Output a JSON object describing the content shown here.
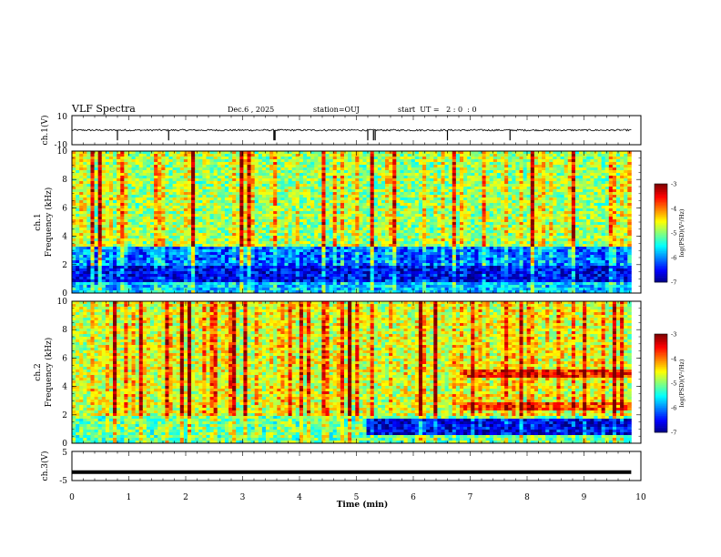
{
  "header": {
    "title": "VLF Spectra",
    "date": "Dec.6 , 2025",
    "station": "station=OUJ",
    "start_ut": "start  UT =   2 : 0  : 0"
  },
  "chart_data": [
    {
      "type": "line",
      "panel": "ch1-waveform",
      "ylabel": "ch.1(V)",
      "ylim": [
        -10,
        10
      ],
      "yticks": [
        "10",
        "-10"
      ],
      "x_range_min": [
        0,
        9.83
      ],
      "baseline_value": 0,
      "noise_amplitude": 0.6,
      "spikes_min": [
        0.8,
        1.7,
        3.55,
        3.57,
        5.2,
        5.3,
        5.33,
        6.6,
        7.7
      ]
    },
    {
      "type": "heatmap",
      "panel": "ch1-spectrogram",
      "ylabel": "ch.1\nFrequency (kHz)",
      "ylabel_line1": "ch.1",
      "ylabel_line2": "Frequency (kHz)",
      "ylim": [
        0,
        10
      ],
      "yticks": [
        "0",
        "2",
        "4",
        "6",
        "8",
        "10"
      ],
      "x_range_min": [
        0,
        9.83
      ],
      "colorbar": {
        "range": [
          -7,
          -3
        ],
        "ticks": [
          "-3",
          "-4",
          "-5",
          "-6",
          "-7"
        ],
        "label": "log(PSD)(V²/Hz)"
      },
      "bands_khz": [
        {
          "from": 0,
          "to": 0.8,
          "level": -5.8
        },
        {
          "from": 0.8,
          "to": 2.0,
          "level": -6.6
        },
        {
          "from": 2.0,
          "to": 3.2,
          "level": -6.2
        },
        {
          "from": 3.2,
          "to": 10,
          "level": -5.0
        }
      ]
    },
    {
      "type": "heatmap",
      "panel": "ch2-spectrogram",
      "ylabel": "ch.2\nFrequency (kHz)",
      "ylabel_line1": "ch.2",
      "ylabel_line2": "Frequency (kHz)",
      "ylim": [
        0,
        10
      ],
      "yticks": [
        "0",
        "2",
        "4",
        "6",
        "8",
        "10"
      ],
      "x_range_min": [
        0,
        9.83
      ],
      "colorbar": {
        "range": [
          -7,
          -3
        ],
        "ticks": [
          "-3",
          "-4",
          "-5",
          "-6",
          "-7"
        ],
        "label": "log(PSD)(V²/Hz)"
      },
      "bands_khz": [
        {
          "from": 0,
          "to": 2,
          "level": -5.2
        },
        {
          "from": 2,
          "to": 10,
          "level": -4.8
        }
      ],
      "events": [
        {
          "t_from_min": 5.2,
          "t_to_min": 9.83,
          "f_from_khz": 0.5,
          "f_to_khz": 1.8,
          "level": -6.7
        },
        {
          "t_from_min": 6.9,
          "t_to_min": 9.83,
          "f_from_khz": 4.7,
          "f_to_khz": 5.2,
          "level": -3.8
        },
        {
          "t_from_min": 6.9,
          "t_to_min": 9.83,
          "f_from_khz": 2.4,
          "f_to_khz": 2.8,
          "level": -4.0
        }
      ]
    },
    {
      "type": "line",
      "panel": "ch3-waveform",
      "ylabel": "ch.3(V)",
      "ylim": [
        -5,
        5
      ],
      "yticks": [
        "5",
        "-5"
      ],
      "x_range_min": [
        0,
        9.83
      ],
      "value": -2.1
    }
  ],
  "xaxis": {
    "xlabel": "Time (min)",
    "xlim": [
      0,
      10
    ],
    "ticks": [
      "0",
      "1",
      "2",
      "3",
      "4",
      "5",
      "6",
      "7",
      "8",
      "9",
      "10"
    ]
  },
  "colors": {
    "waveform": "#000000",
    "jet_low": "#00007f",
    "jet_high": "#7f0000"
  }
}
